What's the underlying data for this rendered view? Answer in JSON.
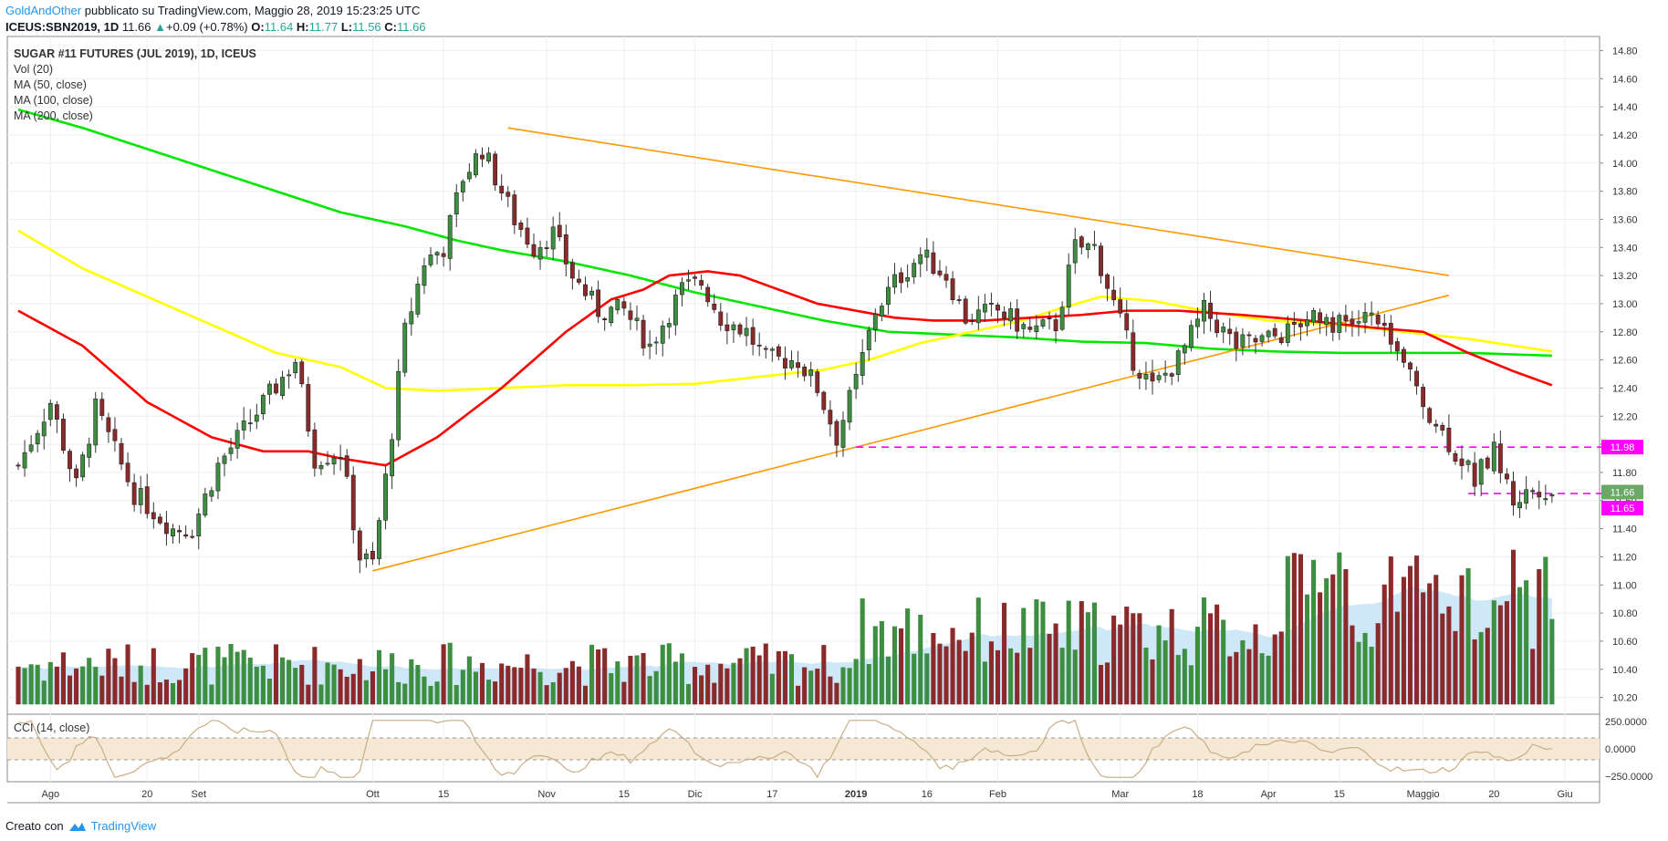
{
  "header": {
    "author": "GoldAndOther",
    "published": "pubblicato su TradingView.com, Maggio 28, 2019 15:23:25 UTC",
    "symbol": "ICEUS:SBN2019, 1D",
    "last": "11.66",
    "change": "+0.09 (+0.78%)",
    "o_label": "O:",
    "o": "11.64",
    "h_label": "H:",
    "h": "11.77",
    "l_label": "L:",
    "l": "11.56",
    "c_label": "C:",
    "c": "11.66"
  },
  "legend": {
    "title": "SUGAR #11 FUTURES (JUL 2019), 1D, ICEUS",
    "vol": "Vol (20)",
    "ma50": "MA (50, close)",
    "ma100": "MA (100, close)",
    "ma200": "MA (200, close)",
    "cci": "CCI (14, close)"
  },
  "footer": {
    "created_with": "Creato con",
    "brand": "TradingView"
  },
  "colors": {
    "up": "#3e8e41",
    "down": "#8b2a2a",
    "ma50": "#ff0000",
    "ma100": "#ffff00",
    "ma200": "#00e600",
    "trendline": "#ff9800",
    "level": "#ff00ff",
    "volume_ma": "#bfe0f5",
    "cci": "#c9ae84",
    "cci_band": "#f5e9d6",
    "grid": "#eeeeee"
  },
  "chart_data": [
    {
      "type": "candlestick",
      "title": "SUGAR #11 FUTURES (JUL 2019), 1D, ICEUS",
      "ylim": [
        10.1,
        14.9
      ],
      "y_ticks": [
        "14.80",
        "14.60",
        "14.40",
        "14.20",
        "14.00",
        "13.80",
        "13.60",
        "13.40",
        "13.20",
        "13.00",
        "12.80",
        "12.60",
        "12.40",
        "12.20",
        "12.00",
        "11.80",
        "11.60",
        "11.40",
        "11.20",
        "11.00",
        "10.80",
        "10.60",
        "10.40",
        "10.20"
      ],
      "x_ticks": [
        {
          "label": "Ago",
          "bold": false
        },
        {
          "label": "20",
          "bold": false
        },
        {
          "label": "Set",
          "bold": false
        },
        {
          "label": "Ott",
          "bold": false
        },
        {
          "label": "15",
          "bold": false
        },
        {
          "label": "Nov",
          "bold": false
        },
        {
          "label": "15",
          "bold": false
        },
        {
          "label": "Dic",
          "bold": false
        },
        {
          "label": "17",
          "bold": false
        },
        {
          "label": "2019",
          "bold": true
        },
        {
          "label": "16",
          "bold": false
        },
        {
          "label": "Feb",
          "bold": false
        },
        {
          "label": "Mar",
          "bold": false
        },
        {
          "label": "18",
          "bold": false
        },
        {
          "label": "Apr",
          "bold": false
        },
        {
          "label": "15",
          "bold": false
        },
        {
          "label": "Maggio",
          "bold": false
        },
        {
          "label": "20",
          "bold": false
        },
        {
          "label": "Giu",
          "bold": false
        }
      ],
      "x_tick_day": [
        5,
        20,
        28,
        55,
        66,
        82,
        94,
        105,
        117,
        130,
        141,
        152,
        171,
        183,
        194,
        205,
        218,
        229,
        240
      ],
      "ohlc_anchors": [
        [
          0,
          11.85
        ],
        [
          5,
          12.3
        ],
        [
          9,
          11.7
        ],
        [
          12,
          12.25
        ],
        [
          18,
          11.65
        ],
        [
          24,
          11.4
        ],
        [
          27,
          11.4
        ],
        [
          31,
          11.85
        ],
        [
          39,
          12.35
        ],
        [
          43,
          12.6
        ],
        [
          46,
          11.9
        ],
        [
          50,
          11.95
        ],
        [
          53,
          11.2
        ],
        [
          55,
          11.15
        ],
        [
          57,
          11.75
        ],
        [
          60,
          12.8
        ],
        [
          63,
          13.3
        ],
        [
          66,
          13.4
        ],
        [
          69,
          13.9
        ],
        [
          72,
          14.1
        ],
        [
          77,
          13.6
        ],
        [
          80,
          13.4
        ],
        [
          83,
          13.5
        ],
        [
          86,
          13.2
        ],
        [
          90,
          12.95
        ],
        [
          94,
          12.95
        ],
        [
          98,
          12.7
        ],
        [
          103,
          13.1
        ],
        [
          106,
          13.15
        ],
        [
          109,
          12.9
        ],
        [
          113,
          12.8
        ],
        [
          116,
          12.6
        ],
        [
          121,
          12.6
        ],
        [
          124,
          12.4
        ],
        [
          127,
          12.05
        ],
        [
          130,
          12.45
        ],
        [
          133,
          12.95
        ],
        [
          136,
          13.15
        ],
        [
          140,
          13.35
        ],
        [
          144,
          13.2
        ],
        [
          147,
          12.9
        ],
        [
          152,
          12.95
        ],
        [
          157,
          12.8
        ],
        [
          161,
          12.85
        ],
        [
          164,
          13.4
        ],
        [
          167,
          13.4
        ],
        [
          170,
          13.0
        ],
        [
          173,
          12.6
        ],
        [
          176,
          12.4
        ],
        [
          180,
          12.6
        ],
        [
          184,
          12.95
        ],
        [
          189,
          12.7
        ],
        [
          194,
          12.75
        ],
        [
          197,
          12.8
        ],
        [
          201,
          12.95
        ],
        [
          205,
          12.85
        ],
        [
          210,
          12.9
        ],
        [
          213,
          12.7
        ],
        [
          217,
          12.4
        ],
        [
          220,
          12.15
        ],
        [
          223,
          11.95
        ],
        [
          226,
          11.75
        ],
        [
          229,
          11.95
        ],
        [
          232,
          11.6
        ],
        [
          236,
          11.7
        ],
        [
          238,
          11.66
        ]
      ],
      "ma50_anchors": [
        [
          0,
          12.95
        ],
        [
          10,
          12.7
        ],
        [
          20,
          12.3
        ],
        [
          30,
          12.05
        ],
        [
          38,
          11.95
        ],
        [
          45,
          11.95
        ],
        [
          50,
          11.9
        ],
        [
          57,
          11.85
        ],
        [
          65,
          12.05
        ],
        [
          75,
          12.4
        ],
        [
          85,
          12.8
        ],
        [
          92,
          13.03
        ],
        [
          97,
          13.1
        ],
        [
          101,
          13.2
        ],
        [
          107,
          13.23
        ],
        [
          112,
          13.2
        ],
        [
          118,
          13.1
        ],
        [
          124,
          13.0
        ],
        [
          130,
          12.95
        ],
        [
          136,
          12.9
        ],
        [
          142,
          12.88
        ],
        [
          150,
          12.88
        ],
        [
          157,
          12.9
        ],
        [
          165,
          12.92
        ],
        [
          172,
          12.95
        ],
        [
          180,
          12.95
        ],
        [
          190,
          12.92
        ],
        [
          200,
          12.88
        ],
        [
          210,
          12.83
        ],
        [
          218,
          12.8
        ],
        [
          225,
          12.65
        ],
        [
          232,
          12.52
        ],
        [
          238,
          12.42
        ]
      ],
      "ma100_anchors": [
        [
          0,
          13.52
        ],
        [
          10,
          13.25
        ],
        [
          20,
          13.05
        ],
        [
          30,
          12.85
        ],
        [
          40,
          12.65
        ],
        [
          50,
          12.55
        ],
        [
          57,
          12.4
        ],
        [
          65,
          12.38
        ],
        [
          75,
          12.4
        ],
        [
          85,
          12.42
        ],
        [
          95,
          12.42
        ],
        [
          105,
          12.43
        ],
        [
          115,
          12.48
        ],
        [
          125,
          12.53
        ],
        [
          132,
          12.6
        ],
        [
          140,
          12.72
        ],
        [
          148,
          12.8
        ],
        [
          155,
          12.87
        ],
        [
          162,
          12.97
        ],
        [
          168,
          13.05
        ],
        [
          176,
          13.02
        ],
        [
          184,
          12.95
        ],
        [
          194,
          12.88
        ],
        [
          205,
          12.85
        ],
        [
          215,
          12.8
        ],
        [
          225,
          12.75
        ],
        [
          238,
          12.66
        ]
      ],
      "ma200_anchors": [
        [
          0,
          14.38
        ],
        [
          10,
          14.25
        ],
        [
          20,
          14.1
        ],
        [
          30,
          13.95
        ],
        [
          40,
          13.8
        ],
        [
          50,
          13.65
        ],
        [
          60,
          13.55
        ],
        [
          68,
          13.45
        ],
        [
          75,
          13.38
        ],
        [
          85,
          13.3
        ],
        [
          95,
          13.2
        ],
        [
          105,
          13.08
        ],
        [
          115,
          12.98
        ],
        [
          125,
          12.88
        ],
        [
          135,
          12.8
        ],
        [
          145,
          12.78
        ],
        [
          155,
          12.76
        ],
        [
          165,
          12.73
        ],
        [
          175,
          12.72
        ],
        [
          185,
          12.68
        ],
        [
          195,
          12.66
        ],
        [
          205,
          12.65
        ],
        [
          215,
          12.65
        ],
        [
          225,
          12.65
        ],
        [
          238,
          12.63
        ]
      ],
      "trendlines": [
        {
          "from": [
            76,
            14.25
          ],
          "to": [
            222,
            13.2
          ]
        },
        {
          "from": [
            55,
            11.1
          ],
          "to": [
            222,
            13.06
          ]
        },
        {
          "from": [
            130,
            11.98
          ],
          "to": [
            246,
            11.98
          ],
          "dashed": true,
          "style": "level"
        },
        {
          "from": [
            225,
            11.65
          ],
          "to": [
            246,
            11.65
          ],
          "dashed": true,
          "style": "level"
        }
      ],
      "price_labels": [
        {
          "value": 11.98,
          "text": "11.98",
          "color": "#ff00ff"
        },
        {
          "value": 11.66,
          "text": "11.66",
          "color": "#6aa86a"
        },
        {
          "value": 11.65,
          "text": "11.65",
          "color": "#ff00ff"
        }
      ],
      "volume_panel": {
        "max_k": 65,
        "base_value": 10.15,
        "top_value": 11.25
      }
    },
    {
      "type": "line",
      "title": "CCI (14, close)",
      "ylim": [
        -300,
        300
      ],
      "y_ticks": [
        "250.0000",
        "0.0000",
        "−250.0000"
      ],
      "band": [
        -100,
        100
      ]
    }
  ]
}
